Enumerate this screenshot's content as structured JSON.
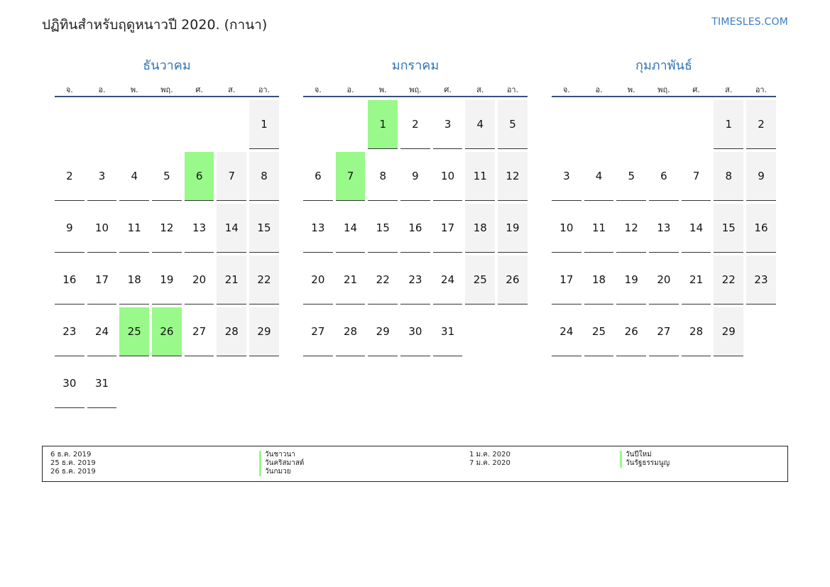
{
  "header": {
    "title": "ปฏิทินสำหรับฤดูหนาวปี 2020. (กานา)",
    "site": "TIMESLES.COM"
  },
  "weekday_labels": [
    "จ.",
    "อ.",
    "พ.",
    "พฤ.",
    "ศ.",
    "ส.",
    "อา."
  ],
  "months": [
    {
      "name": "ธันวาคม",
      "weeks": [
        [
          "",
          "",
          "",
          "",
          "",
          "",
          "1"
        ],
        [
          "2",
          "3",
          "4",
          "5",
          "6",
          "7",
          "8"
        ],
        [
          "9",
          "10",
          "11",
          "12",
          "13",
          "14",
          "15"
        ],
        [
          "16",
          "17",
          "18",
          "19",
          "20",
          "21",
          "22"
        ],
        [
          "23",
          "24",
          "25",
          "26",
          "27",
          "28",
          "29"
        ],
        [
          "30",
          "31",
          "",
          "",
          "",
          "",
          ""
        ]
      ],
      "holidays": [
        "6",
        "25",
        "26"
      ]
    },
    {
      "name": "มกราคม",
      "weeks": [
        [
          "",
          "",
          "1",
          "2",
          "3",
          "4",
          "5"
        ],
        [
          "6",
          "7",
          "8",
          "9",
          "10",
          "11",
          "12"
        ],
        [
          "13",
          "14",
          "15",
          "16",
          "17",
          "18",
          "19"
        ],
        [
          "20",
          "21",
          "22",
          "23",
          "24",
          "25",
          "26"
        ],
        [
          "27",
          "28",
          "29",
          "30",
          "31",
          "",
          ""
        ]
      ],
      "holidays": [
        "1",
        "7"
      ]
    },
    {
      "name": "กุมภาพันธ์",
      "weeks": [
        [
          "",
          "",
          "",
          "",
          "",
          "1",
          "2"
        ],
        [
          "3",
          "4",
          "5",
          "6",
          "7",
          "8",
          "9"
        ],
        [
          "10",
          "11",
          "12",
          "13",
          "14",
          "15",
          "16"
        ],
        [
          "17",
          "18",
          "19",
          "20",
          "21",
          "22",
          "23"
        ],
        [
          "24",
          "25",
          "26",
          "27",
          "28",
          "29",
          ""
        ]
      ],
      "holidays": []
    }
  ],
  "legend": {
    "left": [
      {
        "date": "6 ธ.ค. 2019",
        "name": "วันชาวนา"
      },
      {
        "date": "25 ธ.ค. 2019",
        "name": "วันคริสมาสต์"
      },
      {
        "date": "26 ธ.ค. 2019",
        "name": "วันกมวย"
      }
    ],
    "right": [
      {
        "date": "1 ม.ค. 2020",
        "name": "วันปีใหม่"
      },
      {
        "date": "7 ม.ค. 2020",
        "name": "วันรัฐธรรมนูญ"
      }
    ]
  },
  "colors": {
    "holiday": "#99f98a",
    "weekend": "#f3f3f3",
    "month_title": "#2f74b5",
    "link": "#3a7dbf"
  }
}
